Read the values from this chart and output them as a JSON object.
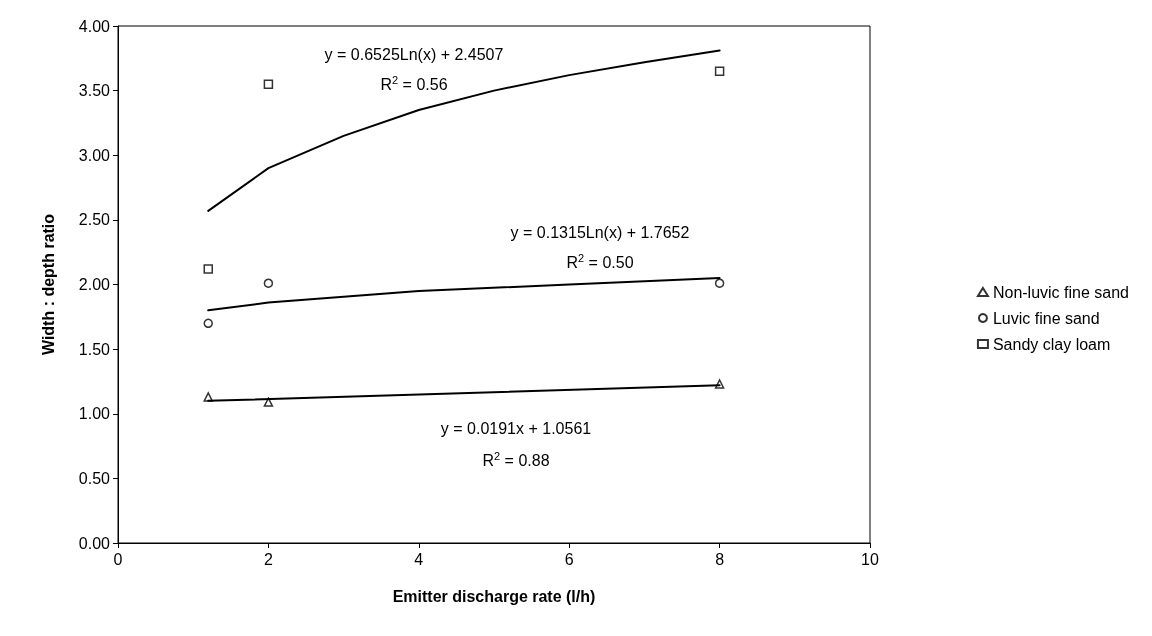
{
  "chart_data": {
    "type": "scatter",
    "xlabel": "Emitter discharge rate (l/h)",
    "ylabel": "Width : depth ratio",
    "xlim": [
      0,
      10
    ],
    "xticks": [
      0,
      2,
      4,
      6,
      8,
      10
    ],
    "ylim": [
      0,
      4
    ],
    "yticks": [
      {
        "value": 0,
        "label": "0.00"
      },
      {
        "value": 0.5,
        "label": "0.50"
      },
      {
        "value": 1,
        "label": "1.00"
      },
      {
        "value": 1.5,
        "label": "1.50"
      },
      {
        "value": 2,
        "label": "2.00"
      },
      {
        "value": 2.5,
        "label": "2.50"
      },
      {
        "value": 3,
        "label": "3.00"
      },
      {
        "value": 3.5,
        "label": "3.50"
      },
      {
        "value": 4,
        "label": "4.00"
      }
    ],
    "grid": false,
    "legend": "right",
    "series": [
      {
        "name": "Non-luvic fine sand",
        "marker": "triangle",
        "color": "#000000",
        "x": [
          1.2,
          2,
          8
        ],
        "values": [
          1.13,
          1.09,
          1.23
        ]
      },
      {
        "name": "Luvic fine sand",
        "marker": "circle",
        "color": "#000000",
        "x": [
          1.2,
          2,
          8
        ],
        "values": [
          1.7,
          2.01,
          2.01
        ]
      },
      {
        "name": "Sandy clay loam",
        "marker": "square",
        "color": "#000000",
        "x": [
          1.2,
          2,
          8
        ],
        "values": [
          2.12,
          3.55,
          3.65
        ]
      },
      {
        "type": "line",
        "marker": "none",
        "color": "#000000",
        "x": [
          1.2,
          8
        ],
        "values": [
          1.1,
          1.22
        ]
      },
      {
        "type": "line",
        "marker": "none",
        "color": "#000000",
        "x": [
          1.2,
          2,
          4,
          6,
          8
        ],
        "values": [
          1.8,
          1.86,
          1.95,
          2.0,
          2.05
        ]
      },
      {
        "type": "line",
        "marker": "none",
        "color": "#000000",
        "x": [
          1.2,
          2,
          3,
          4,
          5,
          6,
          7,
          8
        ],
        "values": [
          2.57,
          2.9,
          3.15,
          3.35,
          3.5,
          3.62,
          3.72,
          3.81
        ]
      }
    ],
    "annotations": [
      "y = 0.6525Ln(x) + 2.4507",
      "R$^{2}$ = 0.56",
      "y = 0.1315Ln(x) + 1.7652",
      "R$^{2}$ = 0.50",
      "y = 0.0191x + 1.0561",
      "R$^{2}$ = 0.88"
    ]
  }
}
